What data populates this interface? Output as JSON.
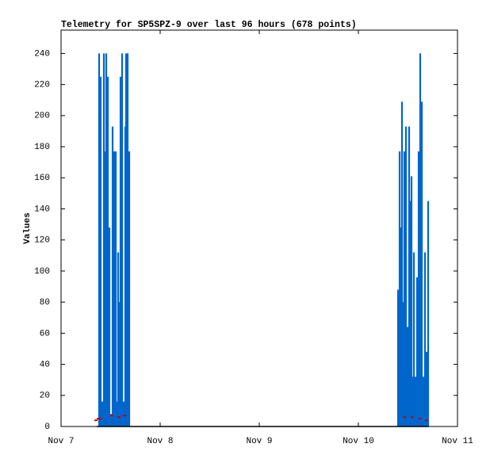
{
  "chart_data": {
    "type": "impulse",
    "title": "Telemetry for SP5SPZ-9 over last 96 hours (678 points)",
    "y_label": "Values",
    "xlim": [
      0,
      4
    ],
    "xticks": [
      {
        "value": 0,
        "label": "Nov 7"
      },
      {
        "value": 1,
        "label": "Nov 8"
      },
      {
        "value": 2,
        "label": "Nov 9"
      },
      {
        "value": 3,
        "label": "Nov 10"
      },
      {
        "value": 4,
        "label": "Nov 11"
      }
    ],
    "ylim": [
      0,
      255
    ],
    "yticks": [
      0,
      20,
      40,
      60,
      80,
      100,
      120,
      140,
      160,
      180,
      200,
      220,
      240
    ],
    "grid": false,
    "series": [
      {
        "style": "impulse",
        "color": "#0066cc",
        "x": [
          0.384,
          0.4,
          0.416,
          0.432,
          0.44,
          0.456,
          0.472,
          0.488,
          0.504,
          0.52,
          0.536,
          0.552,
          0.56,
          0.576,
          0.584,
          0.6,
          0.616,
          0.632,
          0.648,
          0.656,
          0.672,
          0.688,
          3.4,
          3.416,
          3.424,
          3.44,
          3.456,
          3.464,
          3.48,
          3.496,
          3.512,
          3.52,
          3.536,
          3.544,
          3.56,
          3.576,
          3.592,
          3.608,
          3.624,
          3.64,
          3.656,
          3.672,
          3.688,
          3.704
        ],
        "values": [
          240,
          225,
          16,
          240,
          177,
          240,
          225,
          128,
          8,
          193,
          177,
          177,
          16,
          112,
          80,
          225,
          240,
          16,
          193,
          240,
          240,
          177,
          88,
          177,
          128,
          209,
          80,
          177,
          193,
          64,
          193,
          145,
          161,
          32,
          112,
          32,
          96,
          177,
          240,
          209,
          32,
          112,
          48,
          145
        ]
      },
      {
        "style": "points",
        "color": "#cc0000",
        "x": [
          0.352,
          0.376,
          0.4,
          0.512,
          0.584,
          0.64,
          3.464,
          3.544,
          3.624,
          3.688
        ],
        "values": [
          4,
          5,
          5,
          7,
          6,
          7,
          6,
          6,
          5,
          4
        ]
      },
      {
        "style": "line",
        "color": "#000000",
        "x": [
          0.36,
          3.71
        ],
        "values": [
          0,
          0
        ]
      }
    ]
  }
}
